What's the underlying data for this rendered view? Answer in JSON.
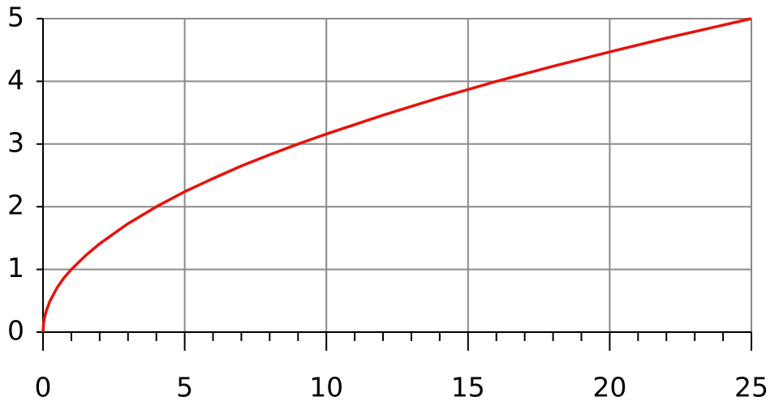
{
  "chart_data": {
    "type": "line",
    "x": [
      0,
      0.02,
      0.05,
      0.1,
      0.25,
      0.5,
      0.75,
      1,
      1.5,
      2,
      3,
      4,
      5,
      6,
      7,
      8,
      9,
      10,
      12,
      14,
      16,
      18,
      20,
      22,
      25
    ],
    "series": [
      {
        "color": "#e8120c",
        "values": [
          0,
          0.14,
          0.22,
          0.32,
          0.5,
          0.71,
          0.87,
          1,
          1.22,
          1.41,
          1.73,
          2,
          2.24,
          2.45,
          2.65,
          2.83,
          3,
          3.16,
          3.46,
          3.74,
          4,
          4.24,
          4.47,
          4.69,
          5
        ]
      }
    ],
    "xlim": [
      0,
      25
    ],
    "ylim": [
      0,
      5
    ],
    "xticks": [
      0,
      5,
      10,
      15,
      20,
      25
    ],
    "xminorticks": [
      1,
      2,
      3,
      4,
      6,
      7,
      8,
      9,
      11,
      12,
      13,
      14,
      16,
      17,
      18,
      19,
      21,
      22,
      23,
      24
    ],
    "yticks": [
      0,
      1,
      2,
      3,
      4,
      5
    ],
    "grid": true
  }
}
